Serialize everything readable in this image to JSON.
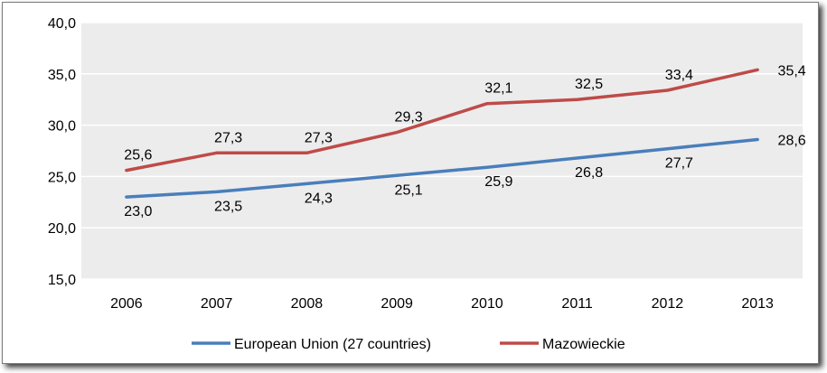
{
  "chart_data": {
    "type": "line",
    "title": "",
    "xlabel": "",
    "ylabel": "",
    "x": [
      "2006",
      "2007",
      "2008",
      "2009",
      "2010",
      "2011",
      "2012",
      "2013"
    ],
    "ylim": [
      15,
      40
    ],
    "yticks": [
      "15,0",
      "20,0",
      "25,0",
      "30,0",
      "35,0",
      "40,0"
    ],
    "ytick_values": [
      15,
      20,
      25,
      30,
      35,
      40
    ],
    "grid": true,
    "legend_position": "bottom",
    "series": [
      {
        "name": "European Union (27 countries)",
        "color": "#4a7ebb",
        "values": [
          23.0,
          23.5,
          24.3,
          25.1,
          25.9,
          26.8,
          27.7,
          28.6
        ],
        "labels": [
          "23,0",
          "23,5",
          "24,3",
          "25,1",
          "25,9",
          "26,8",
          "27,7",
          "28,6"
        ]
      },
      {
        "name": "Mazowieckie",
        "color": "#be4b48",
        "values": [
          25.6,
          27.3,
          27.3,
          29.3,
          32.1,
          32.5,
          33.4,
          35.4
        ],
        "labels": [
          "25,6",
          "27,3",
          "27,3",
          "29,3",
          "32,1",
          "32,5",
          "33,4",
          "35,4"
        ]
      }
    ],
    "plot_background": "#ececec",
    "gridline_color": "#ffffff"
  }
}
